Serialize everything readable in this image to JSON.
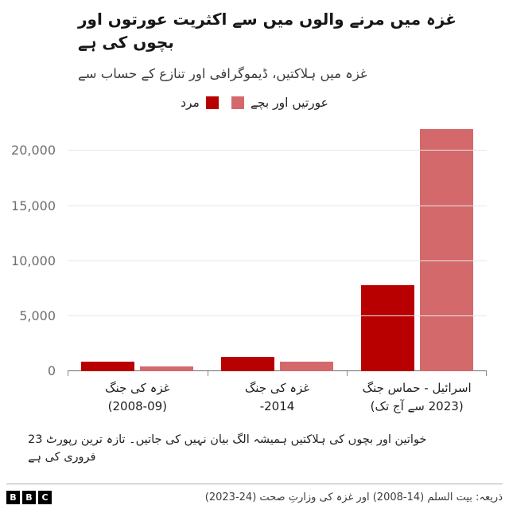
{
  "header": {
    "title_lines": [
      "غزہ میں مرنے والوں میں سے اکثریت عورتوں اور",
      "بچوں کی ہے"
    ],
    "subtitle": "غزہ میں ہلاکتیں، ڈیموگرافی اور تنازع کے حساب سے"
  },
  "chart_data": {
    "type": "bar",
    "title": "غزہ میں مرنے والوں میں سے اکثریت عورتوں اور بچوں کی ہے",
    "subtitle": "غزہ میں ہلاکتیں، ڈیموگرافی اور تنازع کے حساب سے",
    "categories": [
      "غزہ کی جنگ (2008-09)",
      "غزہ کی جنگ 2014",
      "اسرائیل - حماس جنگ (2023 سے آج تک)"
    ],
    "category_lines": [
      [
        "غزہ کی جنگ",
        "(2008-09)"
      ],
      [
        "غزہ کی جنگ",
        "2014-"
      ],
      [
        "اسرائیل - حماس جنگ",
        "(2023 سے آج تک)"
      ]
    ],
    "series": [
      {
        "name": "مرد",
        "color": "#b80000",
        "values": [
          900,
          1300,
          7800
        ]
      },
      {
        "name": "عورتیں اور بچے",
        "color": "#d4696b",
        "values": [
          450,
          850,
          22000
        ]
      }
    ],
    "yticks": [
      0,
      5000,
      10000,
      15000,
      20000
    ],
    "ytick_labels": [
      "0",
      "5,000",
      "10,000",
      "15,000",
      "20,000"
    ],
    "ylim": [
      0,
      23000
    ],
    "grid": true,
    "legend_position": "top-center"
  },
  "footnote": {
    "lines": [
      "خواتین اور بچوں کی ہلاکتیں ہمیشہ الگ بیان نہیں کی جاتیں۔ تازہ ترین رپورٹ 23",
      "فروری کی ہے"
    ]
  },
  "footer": {
    "source": "ذریعہ: بیت السلم (14-2008) اور غزہ کی وزارتِ صحت (24-2023)",
    "logo_letters": [
      "B",
      "B",
      "C"
    ]
  },
  "colors": {
    "men": "#b80000",
    "women_children": "#d4696b",
    "gridline": "#e6e6e6",
    "axis": "#6e6e6e",
    "background": "#ffffff"
  }
}
